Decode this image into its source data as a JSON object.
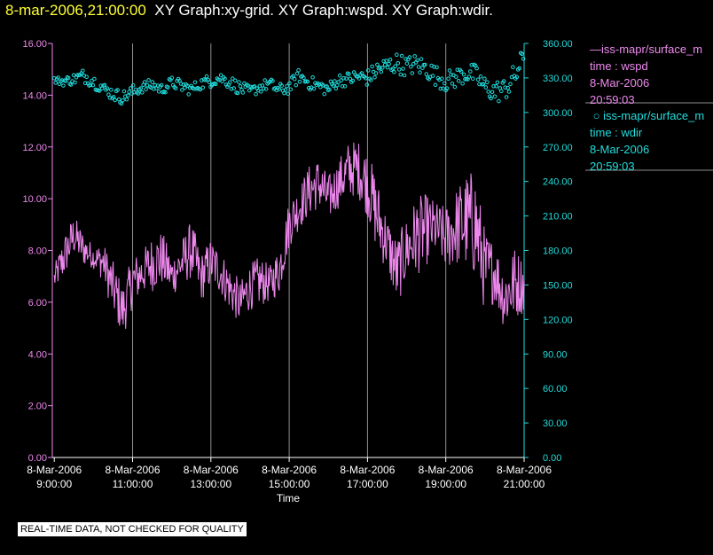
{
  "header": {
    "timestamp": "8-mar-2006,21:00:00",
    "titles": "XY Graph:xy-grid.  XY Graph:wspd.  XY Graph:wdir."
  },
  "legend": {
    "wspd": {
      "name": "iss-mapr/surface_m",
      "line2": "time : wspd",
      "line3": "8-Mar-2006",
      "line4": "20:59:03"
    },
    "wdir": {
      "name": "iss-mapr/surface_m",
      "line2": "time : wdir",
      "line3": "8-Mar-2006",
      "line4": "20:59:03"
    }
  },
  "quality_note": "REAL-TIME DATA, NOT CHECKED FOR QUALITY",
  "colors": {
    "wspd": "#ee88ee",
    "wdir": "#22dddd",
    "grid": "#909090",
    "background": "#000000",
    "axis_text": "#ffffff"
  },
  "chart_data": {
    "type": "line",
    "xlabel": "Time",
    "x_range_hours": [
      8.95,
      21.0
    ],
    "x_ticks": [
      {
        "date": "8-Mar-2006",
        "time": "9:00:00",
        "hour": 9
      },
      {
        "date": "8-Mar-2006",
        "time": "11:00:00",
        "hour": 11
      },
      {
        "date": "8-Mar-2006",
        "time": "13:00:00",
        "hour": 13
      },
      {
        "date": "8-Mar-2006",
        "time": "15:00:00",
        "hour": 15
      },
      {
        "date": "8-Mar-2006",
        "time": "17:00:00",
        "hour": 17
      },
      {
        "date": "8-Mar-2006",
        "time": "19:00:00",
        "hour": 19
      },
      {
        "date": "8-Mar-2006",
        "time": "21:00:00",
        "hour": 21
      }
    ],
    "grid_vertical_hours": [
      11,
      13,
      15,
      17,
      19
    ],
    "y_left": {
      "min": 0,
      "max": 16,
      "ticks": [
        "0.00",
        "2.00",
        "4.00",
        "6.00",
        "8.00",
        "10.00",
        "12.00",
        "14.00",
        "16.00"
      ]
    },
    "y_right": {
      "min": 0,
      "max": 360,
      "ticks": [
        "0.00",
        "30.00",
        "60.00",
        "90.00",
        "120.00",
        "150.00",
        "180.00",
        "210.00",
        "240.00",
        "270.00",
        "300.00",
        "330.00",
        "360.00"
      ]
    },
    "series": [
      {
        "name": "iss-mapr/surface_m time : wspd",
        "axis": "left",
        "style": "line",
        "note": "envelope of fluctuating wind speed (approx min/max over time)",
        "x_hours": [
          9.0,
          9.25,
          9.5,
          9.75,
          10.0,
          10.25,
          10.5,
          10.75,
          11.0,
          11.25,
          11.5,
          11.75,
          12.0,
          12.25,
          12.5,
          12.75,
          13.0,
          13.25,
          13.5,
          13.75,
          14.0,
          14.25,
          14.5,
          14.75,
          15.0,
          15.25,
          15.5,
          15.75,
          16.0,
          16.25,
          16.5,
          16.75,
          17.0,
          17.25,
          17.5,
          17.75,
          18.0,
          18.25,
          18.5,
          18.75,
          19.0,
          19.25,
          19.5,
          19.75,
          20.0,
          20.25,
          20.5,
          20.75,
          21.0
        ],
        "low": [
          6.4,
          6.9,
          7.8,
          7.4,
          7.3,
          6.8,
          5.5,
          4.6,
          5.8,
          6.3,
          6.4,
          6.6,
          6.2,
          6.6,
          6.9,
          6.0,
          6.6,
          6.3,
          5.6,
          5.1,
          5.7,
          5.8,
          6.0,
          6.3,
          8.1,
          8.8,
          9.3,
          9.6,
          9.1,
          9.6,
          10.0,
          10.1,
          9.3,
          7.8,
          7.2,
          5.8,
          6.8,
          7.0,
          7.4,
          7.8,
          7.2,
          7.4,
          7.2,
          6.9,
          5.6,
          6.0,
          4.9,
          5.3,
          5.6
        ],
        "high": [
          7.4,
          8.6,
          9.4,
          8.7,
          8.2,
          8.3,
          7.6,
          6.7,
          7.8,
          8.0,
          8.6,
          8.8,
          7.8,
          8.4,
          9.2,
          7.9,
          8.5,
          8.0,
          7.4,
          6.8,
          7.5,
          7.8,
          7.4,
          8.2,
          10.0,
          10.5,
          11.3,
          11.6,
          10.9,
          11.5,
          12.2,
          12.3,
          11.9,
          10.8,
          9.4,
          8.5,
          9.3,
          10.1,
          10.2,
          9.9,
          9.7,
          10.4,
          11.0,
          11.2,
          8.8,
          8.4,
          7.4,
          8.2,
          7.7
        ]
      },
      {
        "name": "iss-mapr/surface_m time : wdir",
        "axis": "right",
        "style": "scatter",
        "note": "approx center and spread of wind direction points",
        "x_hours": [
          9.0,
          9.25,
          9.5,
          9.75,
          10.0,
          10.25,
          10.5,
          10.75,
          11.0,
          11.25,
          11.5,
          11.75,
          12.0,
          12.25,
          12.5,
          12.75,
          13.0,
          13.25,
          13.5,
          13.75,
          14.0,
          14.25,
          14.5,
          14.75,
          15.0,
          15.25,
          15.5,
          15.75,
          16.0,
          16.25,
          16.5,
          16.75,
          17.0,
          17.25,
          17.5,
          17.75,
          18.0,
          18.25,
          18.5,
          18.75,
          19.0,
          19.25,
          19.5,
          19.75,
          20.0,
          20.25,
          20.5,
          20.75,
          21.0
        ],
        "center": [
          328,
          327,
          329,
          332,
          327,
          321,
          316,
          313,
          318,
          322,
          324,
          320,
          326,
          323,
          320,
          325,
          328,
          330,
          326,
          321,
          318,
          322,
          325,
          319,
          322,
          332,
          326,
          323,
          320,
          328,
          329,
          331,
          330,
          337,
          340,
          343,
          340,
          342,
          338,
          332,
          327,
          330,
          334,
          333,
          322,
          318,
          320,
          330,
          350
        ],
        "spread": [
          3,
          4,
          5,
          6,
          6,
          5,
          6,
          6,
          6,
          5,
          5,
          5,
          5,
          6,
          5,
          5,
          6,
          5,
          6,
          6,
          5,
          5,
          5,
          6,
          6,
          6,
          6,
          6,
          6,
          6,
          6,
          7,
          7,
          8,
          9,
          9,
          9,
          9,
          9,
          9,
          9,
          9,
          9,
          9,
          9,
          10,
          10,
          12,
          8
        ]
      }
    ]
  }
}
